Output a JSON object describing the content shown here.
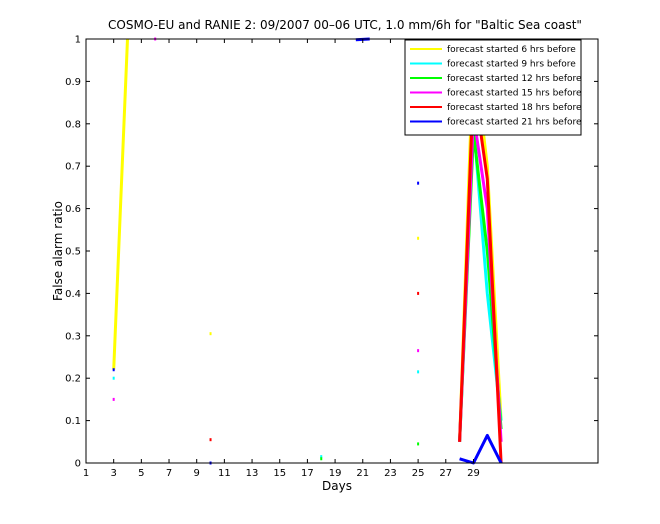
{
  "chart_data": {
    "type": "line",
    "title": "COSMO-EU and RANIE 2: 09/2007 00–06 UTC, 1.0 mm/6h for \"Baltic Sea coast\"",
    "xlabel": "Days",
    "ylabel": "False alarm ratio",
    "xlim": [
      1,
      38
    ],
    "ylim": [
      0,
      1
    ],
    "xticks": [
      1,
      3,
      5,
      7,
      9,
      11,
      13,
      15,
      17,
      19,
      21,
      23,
      25,
      27,
      29
    ],
    "yticks": [
      0,
      0.1,
      0.2,
      0.3,
      0.4,
      0.5,
      0.6,
      0.7,
      0.8,
      0.9,
      1
    ],
    "xtick_labels": [
      "1",
      "3",
      "5",
      "7",
      "9",
      "11",
      "13",
      "15",
      "17",
      "19",
      "21",
      "23",
      "25",
      "27",
      "29"
    ],
    "ytick_labels": [
      "0",
      "0.1",
      "0.2",
      "0.3",
      "0.4",
      "0.5",
      "0.6",
      "0.7",
      "0.8",
      "0.9",
      "1"
    ],
    "legend_position": "top-right",
    "grid": false,
    "series": [
      {
        "name": "forecast started 6 hrs before",
        "color": "#ffff00",
        "lines": [
          [
            [
              3,
              0.22
            ],
            [
              4,
              1.0
            ]
          ],
          [
            [
              28,
              0.05
            ],
            [
              29,
              0.98
            ],
            [
              30,
              0.7
            ],
            [
              31,
              0.1
            ]
          ]
        ],
        "points": [
          [
            10,
            0.305
          ],
          [
            25,
            0.53
          ]
        ]
      },
      {
        "name": "forecast started 9 hrs before",
        "color": "#00ffff",
        "lines": [
          [
            [
              28,
              0.05
            ],
            [
              29,
              0.8
            ],
            [
              30,
              0.4
            ],
            [
              31,
              0.1
            ]
          ]
        ],
        "points": [
          [
            3,
            0.2
          ],
          [
            18,
            0.015
          ],
          [
            25,
            0.215
          ]
        ]
      },
      {
        "name": "forecast started 12 hrs before",
        "color": "#00ff00",
        "lines": [
          [
            [
              28,
              0.05
            ],
            [
              29,
              0.78
            ],
            [
              30,
              0.5
            ],
            [
              31,
              0.08
            ]
          ]
        ],
        "points": [
          [
            18,
            0.01
          ],
          [
            25,
            0.045
          ]
        ]
      },
      {
        "name": "forecast started 15 hrs before",
        "color": "#ff00ff",
        "lines": [
          [
            [
              28,
              0.05
            ],
            [
              29,
              0.82
            ],
            [
              30,
              0.6
            ],
            [
              31,
              0.05
            ]
          ]
        ],
        "points": [
          [
            3,
            0.15
          ],
          [
            6,
            1.0
          ],
          [
            25,
            0.265
          ]
        ]
      },
      {
        "name": "forecast started 18 hrs before",
        "color": "#ff0000",
        "lines": [
          [
            [
              28,
              0.05
            ],
            [
              29,
              0.9
            ],
            [
              30,
              0.67
            ],
            [
              31,
              0.0
            ]
          ]
        ],
        "points": [
          [
            10,
            0.055
          ],
          [
            25,
            0.4
          ]
        ]
      },
      {
        "name": "forecast started 21 hrs before",
        "color": "#0000ff",
        "lines": [
          [
            [
              28,
              0.01
            ],
            [
              29,
              0.0
            ],
            [
              30,
              0.065
            ],
            [
              31,
              0.0
            ]
          ],
          [
            [
              20.5,
              0.998
            ],
            [
              21.5,
              1.0
            ]
          ]
        ],
        "points": [
          [
            3,
            0.22
          ],
          [
            10,
            0.0
          ],
          [
            25,
            0.66
          ]
        ]
      }
    ]
  }
}
